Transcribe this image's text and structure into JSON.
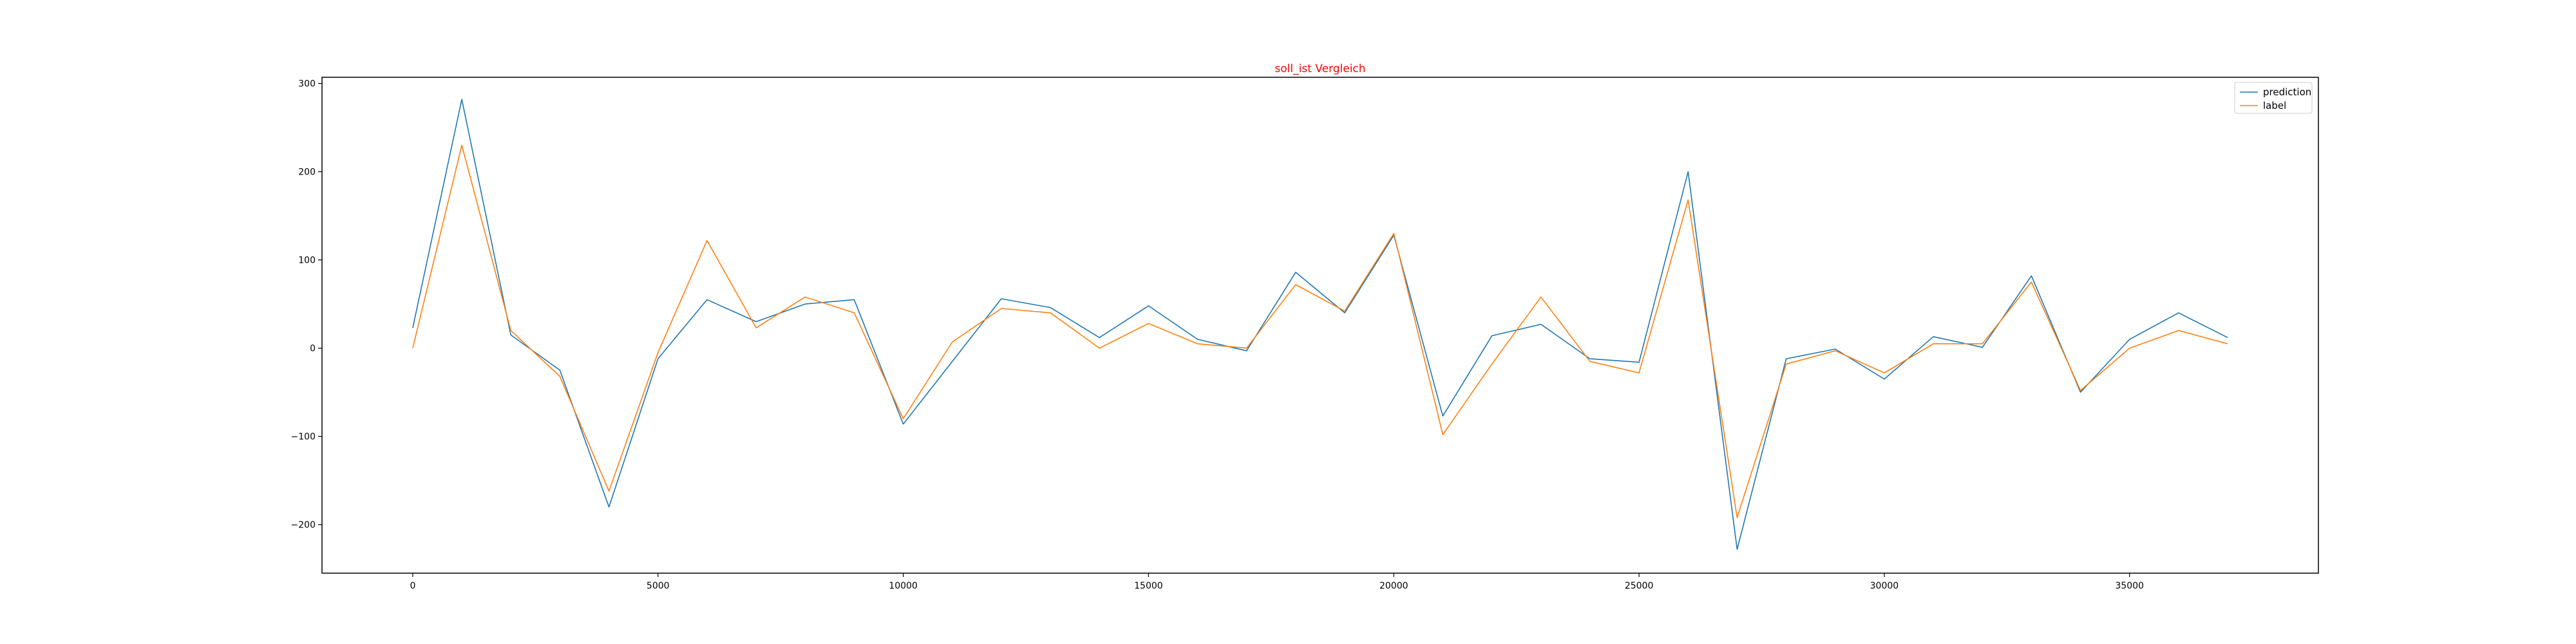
{
  "chart_data": {
    "type": "line",
    "title": "soll_ist Vergleich",
    "title_color": "#ff0000",
    "xlabel": "",
    "ylabel": "",
    "xlim": [
      -1850,
      38850
    ],
    "ylim": [
      -255,
      307
    ],
    "xticks": [
      0,
      5000,
      10000,
      15000,
      20000,
      25000,
      30000,
      35000
    ],
    "xtick_labels": [
      "0",
      "5000",
      "10000",
      "15000",
      "20000",
      "25000",
      "30000",
      "35000"
    ],
    "yticks": [
      -200,
      -100,
      0,
      100,
      200,
      300
    ],
    "ytick_labels": [
      "−200",
      "−100",
      "0",
      "100",
      "200",
      "300"
    ],
    "grid": false,
    "legend_position": "top-right",
    "x": [
      0,
      1000,
      2000,
      3000,
      4000,
      5000,
      6000,
      7000,
      8000,
      9000,
      10000,
      11000,
      12000,
      13000,
      14000,
      15000,
      16000,
      17000,
      18000,
      19000,
      20000,
      21000,
      22000,
      23000,
      24000,
      25000,
      26000,
      27000,
      28000,
      29000,
      30000,
      31000,
      32000,
      33000,
      34000,
      35000,
      36000,
      37000
    ],
    "series": [
      {
        "name": "prediction",
        "color": "#1f77b4",
        "values": [
          23,
          282,
          15,
          -25,
          -180,
          -12,
          55,
          30,
          50,
          55,
          -86,
          -15,
          56,
          46,
          12,
          48,
          10,
          -3,
          86,
          40,
          128,
          -77,
          14,
          27,
          -12,
          -16,
          200,
          -228,
          -12,
          -1,
          -35,
          13,
          1,
          82,
          -50,
          10,
          40,
          12
        ]
      },
      {
        "name": "label",
        "color": "#ff7f0e",
        "values": [
          0,
          230,
          20,
          -32,
          -162,
          -5,
          122,
          23,
          58,
          40,
          -80,
          7,
          45,
          40,
          0,
          28,
          5,
          0,
          72,
          42,
          130,
          -98,
          -18,
          58,
          -15,
          -28,
          168,
          -192,
          -18,
          -3,
          -28,
          5,
          5,
          75,
          -48,
          0,
          20,
          5
        ]
      }
    ]
  }
}
